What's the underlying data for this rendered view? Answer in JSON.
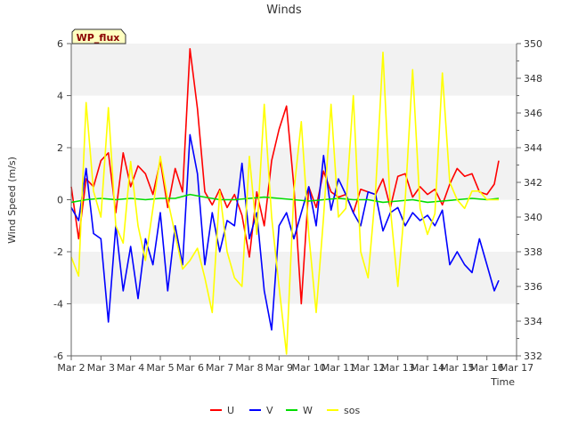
{
  "chart_data": {
    "type": "line",
    "title": "Winds",
    "xlabel": "Time",
    "ylabel": "Wind Speed (m/s)",
    "ylim": [
      -6,
      6
    ],
    "y2lim": [
      332,
      350
    ],
    "xlim": [
      0,
      15
    ],
    "x_tick_labels": [
      "Mar 2",
      "Mar 3",
      "Mar 4",
      "Mar 5",
      "Mar 6",
      "Mar 7",
      "Mar 8",
      "Mar 9",
      "Mar 10",
      "Mar 11",
      "Mar 12",
      "Mar 13",
      "Mar 14",
      "Mar 15",
      "Mar 16",
      "Mar 17"
    ],
    "y_ticks": [
      -6,
      -4,
      -2,
      0,
      2,
      4,
      6
    ],
    "y2_ticks": [
      332,
      334,
      336,
      338,
      340,
      342,
      344,
      346,
      348,
      350
    ],
    "badge": "WP_flux",
    "colors": {
      "U": "#ff0000",
      "V": "#0000ff",
      "W": "#00dd00",
      "sos": "#ffff00",
      "band": "#f2f2f2"
    },
    "series": [
      {
        "name": "U",
        "axis": "left",
        "x": [
          0.0,
          0.25,
          0.5,
          0.75,
          1.0,
          1.25,
          1.5,
          1.75,
          2.0,
          2.25,
          2.5,
          2.75,
          3.0,
          3.25,
          3.5,
          3.75,
          4.0,
          4.25,
          4.5,
          4.75,
          5.0,
          5.25,
          5.5,
          5.75,
          6.0,
          6.25,
          6.5,
          6.75,
          7.0,
          7.25,
          7.5,
          7.75,
          8.0,
          8.25,
          8.5,
          8.75,
          9.0,
          9.25,
          9.5,
          9.75,
          10.0,
          10.25,
          10.5,
          10.75,
          11.0,
          11.25,
          11.5,
          11.75,
          12.0,
          12.25,
          12.5,
          12.75,
          13.0,
          13.25,
          13.5,
          13.75,
          14.0,
          14.25,
          14.4
        ],
        "y": [
          0.5,
          -1.5,
          0.8,
          0.5,
          1.5,
          1.8,
          -0.5,
          1.8,
          0.5,
          1.3,
          1.0,
          0.2,
          1.5,
          -0.3,
          1.2,
          0.3,
          5.8,
          3.5,
          0.3,
          -0.2,
          0.4,
          -0.3,
          0.2,
          -0.6,
          -2.2,
          0.3,
          -1.0,
          1.5,
          2.7,
          3.6,
          0.5,
          -4.0,
          0.5,
          -0.3,
          1.1,
          0.3,
          0.1,
          0.2,
          -0.5,
          0.4,
          0.3,
          0.2,
          0.8,
          -0.3,
          0.9,
          1.0,
          0.1,
          0.5,
          0.2,
          0.4,
          -0.2,
          0.6,
          1.2,
          0.9,
          1.0,
          0.3,
          0.2,
          0.6,
          1.5
        ]
      },
      {
        "name": "V",
        "axis": "left",
        "x": [
          0.0,
          0.25,
          0.5,
          0.75,
          1.0,
          1.25,
          1.5,
          1.75,
          2.0,
          2.25,
          2.5,
          2.75,
          3.0,
          3.25,
          3.5,
          3.75,
          4.0,
          4.25,
          4.5,
          4.75,
          5.0,
          5.25,
          5.5,
          5.75,
          6.0,
          6.25,
          6.5,
          6.75,
          7.0,
          7.25,
          7.5,
          7.75,
          8.0,
          8.25,
          8.5,
          8.75,
          9.0,
          9.25,
          9.5,
          9.75,
          10.0,
          10.25,
          10.5,
          10.75,
          11.0,
          11.25,
          11.5,
          11.75,
          12.0,
          12.25,
          12.5,
          12.75,
          13.0,
          13.25,
          13.5,
          13.75,
          14.0,
          14.25,
          14.4
        ],
        "y": [
          -0.3,
          -0.8,
          1.2,
          -1.3,
          -1.5,
          -4.7,
          -1.0,
          -3.5,
          -1.8,
          -3.8,
          -1.5,
          -2.5,
          -0.5,
          -3.5,
          -1.0,
          -2.5,
          2.5,
          1.0,
          -2.5,
          -0.5,
          -2.0,
          -0.8,
          -1.0,
          1.4,
          -1.5,
          -0.5,
          -3.5,
          -5.0,
          -1.0,
          -0.5,
          -1.5,
          -0.5,
          0.5,
          -1.0,
          1.7,
          -0.4,
          0.8,
          0.2,
          -0.5,
          -1.0,
          0.3,
          0.2,
          -1.2,
          -0.5,
          -0.3,
          -1.0,
          -0.5,
          -0.8,
          -0.6,
          -1.0,
          -0.4,
          -2.5,
          -2.0,
          -2.5,
          -2.8,
          -1.5,
          -2.5,
          -3.5,
          -3.1
        ]
      },
      {
        "name": "W",
        "axis": "left",
        "x": [
          0.0,
          0.5,
          1.0,
          1.5,
          2.0,
          2.5,
          3.0,
          3.5,
          4.0,
          4.5,
          5.0,
          5.5,
          6.0,
          6.5,
          7.0,
          7.5,
          8.0,
          8.5,
          9.0,
          9.5,
          10.0,
          10.5,
          11.0,
          11.5,
          12.0,
          12.5,
          13.0,
          13.5,
          14.0,
          14.4
        ],
        "y": [
          -0.1,
          0.0,
          0.05,
          0.0,
          0.05,
          0.0,
          0.05,
          0.05,
          0.2,
          0.1,
          0.0,
          0.0,
          0.05,
          0.1,
          0.05,
          0.0,
          -0.05,
          0.0,
          0.05,
          0.0,
          0.0,
          -0.1,
          -0.05,
          0.0,
          -0.1,
          -0.05,
          0.0,
          0.05,
          0.0,
          0.05
        ]
      },
      {
        "name": "sos",
        "axis": "right",
        "x": [
          0.0,
          0.25,
          0.5,
          0.75,
          1.0,
          1.25,
          1.5,
          1.75,
          2.0,
          2.25,
          2.5,
          2.75,
          3.0,
          3.25,
          3.5,
          3.75,
          4.0,
          4.25,
          4.5,
          4.75,
          5.0,
          5.25,
          5.5,
          5.75,
          6.0,
          6.25,
          6.5,
          6.75,
          7.0,
          7.25,
          7.5,
          7.75,
          8.0,
          8.25,
          8.5,
          8.75,
          9.0,
          9.25,
          9.5,
          9.75,
          10.0,
          10.25,
          10.5,
          10.75,
          11.0,
          11.25,
          11.5,
          11.75,
          12.0,
          12.25,
          12.5,
          12.75,
          13.0,
          13.25,
          13.5,
          13.75,
          14.0,
          14.25,
          14.4
        ],
        "y": [
          337.7,
          336.6,
          346.6,
          341.5,
          340.0,
          346.3,
          339.5,
          338.5,
          343.2,
          339.5,
          337.5,
          340.5,
          343.5,
          341.0,
          339.0,
          337.0,
          337.5,
          338.2,
          336.5,
          334.5,
          341.5,
          338.0,
          336.5,
          336.0,
          343.5,
          339.0,
          346.5,
          340.0,
          336.0,
          332.1,
          341.5,
          345.5,
          339.0,
          334.5,
          340.0,
          346.5,
          340.0,
          340.5,
          347.0,
          338.0,
          336.5,
          341.5,
          349.5,
          340.5,
          336.0,
          341.0,
          348.5,
          340.5,
          339.0,
          340.2,
          348.3,
          342.0,
          341.0,
          340.5,
          341.5,
          341.5,
          341.0,
          341.0,
          341.0
        ]
      }
    ]
  }
}
